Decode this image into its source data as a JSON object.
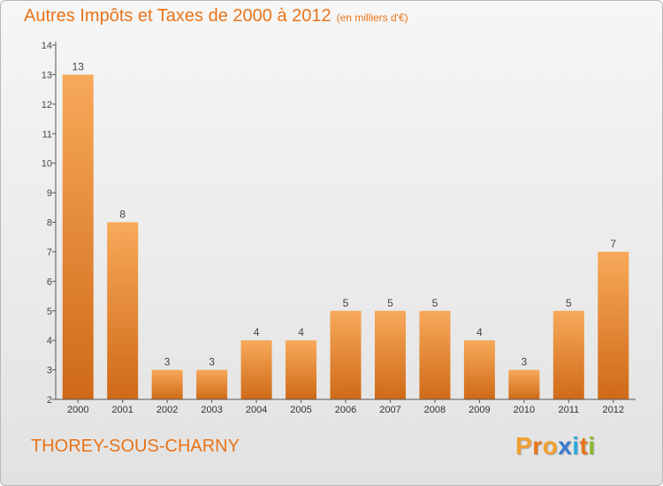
{
  "header": {
    "title": "Autres Impôts et Taxes de 2000 à 2012",
    "subtitle": "(en milliers d'€)"
  },
  "footer": {
    "commune": "THOREY-SOUS-CHARNY",
    "logo_letters": [
      "P",
      "r",
      "o",
      "x",
      "i",
      "t",
      "i"
    ]
  },
  "colors": {
    "accent": "#e8741a",
    "bar_light": "#f7a95a",
    "bar_dark": "#cf6a17",
    "logo": [
      "#f0a030",
      "#e8741a",
      "#f0a030",
      "#3a7ad0",
      "#2aa8d8",
      "#e8741a",
      "#88b828"
    ]
  },
  "chart_data": {
    "type": "bar",
    "title": "Autres Impôts et Taxes de 2000 à 2012",
    "subtitle": "(en milliers d'€)",
    "categories": [
      "2000",
      "2001",
      "2002",
      "2003",
      "2004",
      "2005",
      "2006",
      "2007",
      "2008",
      "2009",
      "2010",
      "2011",
      "2012"
    ],
    "values": [
      13,
      8,
      3,
      3,
      4,
      4,
      5,
      5,
      5,
      4,
      3,
      5,
      7
    ],
    "yticks": [
      2,
      3,
      4,
      5,
      6,
      7,
      8,
      9,
      10,
      11,
      12,
      13,
      14
    ],
    "ylim": [
      2,
      14
    ],
    "grid": false,
    "xlabel": "",
    "ylabel": ""
  }
}
